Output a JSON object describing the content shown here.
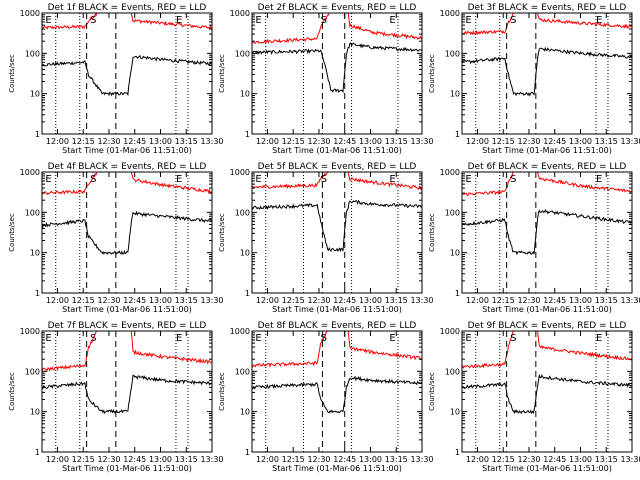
{
  "chart_data": [
    {
      "type": "line",
      "title": "Det 1f BLACK = Events, RED = LLD",
      "xlabel": "Start Time (01-Mar-06 11:51:00)",
      "ylabel": "Counts/sec",
      "yscale": "log",
      "ylim": [
        1,
        1000
      ],
      "xlim": [
        "11:51",
        "13:30"
      ],
      "yticks": [
        "1",
        "10",
        "100",
        "1000"
      ],
      "xticks": [
        "12:00",
        "12:15",
        "12:30",
        "12:45",
        "13:00",
        "13:15",
        "13:30"
      ],
      "markers": [
        "E",
        "S",
        "E"
      ],
      "series": [
        {
          "color": "#ff0000",
          "values": [
            [
              0,
              430
            ],
            [
              25,
              460
            ],
            [
              27,
              620
            ],
            [
              32,
              1000
            ],
            [
              52,
              1000
            ],
            [
              53,
              650
            ],
            [
              70,
              560
            ],
            [
              99,
              430
            ]
          ]
        },
        {
          "color": "#000000",
          "values": [
            [
              0,
              52
            ],
            [
              25,
              60
            ],
            [
              27,
              30
            ],
            [
              35,
              10
            ],
            [
              50,
              10
            ],
            [
              52,
              42
            ],
            [
              53,
              85
            ],
            [
              70,
              70
            ],
            [
              99,
              55
            ]
          ]
        }
      ]
    },
    {
      "type": "line",
      "title": "Det 2f BLACK = Events, RED = LLD",
      "xlabel": "Start Time (01-Mar-06 11:51:00)",
      "ylabel": "Counts/sec",
      "yscale": "log",
      "ylim": [
        1,
        1000
      ],
      "xlim": [
        "11:51",
        "13:30"
      ],
      "yticks": [
        "1",
        "10",
        "100",
        "1000"
      ],
      "xticks": [
        "12:00",
        "12:15",
        "12:30",
        "12:45",
        "13:00",
        "13:15",
        "13:30"
      ],
      "markers": [
        "E",
        "S",
        "E"
      ],
      "series": [
        {
          "color": "#ff0000",
          "values": [
            [
              0,
              190
            ],
            [
              38,
              230
            ],
            [
              40,
              450
            ],
            [
              45,
              1000
            ],
            [
              56,
              1000
            ],
            [
              57,
              500
            ],
            [
              70,
              330
            ],
            [
              99,
              240
            ]
          ]
        },
        {
          "color": "#000000",
          "values": [
            [
              0,
              105
            ],
            [
              40,
              115
            ],
            [
              42,
              60
            ],
            [
              46,
              12
            ],
            [
              53,
              12
            ],
            [
              55,
              100
            ],
            [
              57,
              170
            ],
            [
              70,
              140
            ],
            [
              99,
              120
            ]
          ]
        }
      ]
    },
    {
      "type": "line",
      "title": "Det 3f BLACK = Events, RED = LLD",
      "xlabel": "Start Time (01-Mar-06 11:51:00)",
      "ylabel": "Counts/sec",
      "yscale": "log",
      "ylim": [
        1,
        1000
      ],
      "xlim": [
        "11:51",
        "13:30"
      ],
      "yticks": [
        "1",
        "10",
        "100",
        "1000"
      ],
      "xticks": [
        "12:00",
        "12:15",
        "12:30",
        "12:45",
        "13:00",
        "13:15",
        "13:30"
      ],
      "markers": [
        "E",
        "S",
        "E"
      ],
      "series": [
        {
          "color": "#ff0000",
          "values": [
            [
              0,
              320
            ],
            [
              25,
              350
            ],
            [
              27,
              600
            ],
            [
              30,
              1000
            ],
            [
              44,
              1000
            ],
            [
              45,
              680
            ],
            [
              70,
              560
            ],
            [
              99,
              460
            ]
          ]
        },
        {
          "color": "#000000",
          "values": [
            [
              0,
              60
            ],
            [
              25,
              75
            ],
            [
              27,
              30
            ],
            [
              30,
              10
            ],
            [
              42,
              10
            ],
            [
              44,
              75
            ],
            [
              45,
              130
            ],
            [
              70,
              100
            ],
            [
              99,
              80
            ]
          ]
        }
      ]
    },
    {
      "type": "line",
      "title": "Det 4f BLACK = Events, RED = LLD",
      "xlabel": "Start Time (01-Mar-06 11:51:00)",
      "ylabel": "Counts/sec",
      "yscale": "log",
      "ylim": [
        1,
        1000
      ],
      "xlim": [
        "11:51",
        "13:30"
      ],
      "yticks": [
        "1",
        "10",
        "100",
        "1000"
      ],
      "xticks": [
        "12:00",
        "12:15",
        "12:30",
        "12:45",
        "13:00",
        "13:15",
        "13:30"
      ],
      "markers": [
        "E",
        "S",
        "E"
      ],
      "series": [
        {
          "color": "#ff0000",
          "values": [
            [
              0,
              300
            ],
            [
              25,
              330
            ],
            [
              27,
              520
            ],
            [
              32,
              1000
            ],
            [
              52,
              1000
            ],
            [
              53,
              650
            ],
            [
              70,
              480
            ],
            [
              99,
              330
            ]
          ]
        },
        {
          "color": "#000000",
          "values": [
            [
              0,
              48
            ],
            [
              25,
              62
            ],
            [
              27,
              25
            ],
            [
              35,
              10
            ],
            [
              50,
              10
            ],
            [
              52,
              60
            ],
            [
              53,
              95
            ],
            [
              70,
              80
            ],
            [
              99,
              60
            ]
          ]
        }
      ]
    },
    {
      "type": "line",
      "title": "Det 5f BLACK = Events, RED = LLD",
      "xlabel": "Start Time (01-Mar-06 11:51:00)",
      "ylabel": "Counts/sec",
      "yscale": "log",
      "ylim": [
        1,
        1000
      ],
      "xlim": [
        "11:51",
        "13:30"
      ],
      "yticks": [
        "1",
        "10",
        "100",
        "1000"
      ],
      "xticks": [
        "12:00",
        "12:15",
        "12:30",
        "12:45",
        "13:00",
        "13:15",
        "13:30"
      ],
      "markers": [
        "E",
        "S",
        "E"
      ],
      "series": [
        {
          "color": "#ff0000",
          "values": [
            [
              0,
              420
            ],
            [
              38,
              470
            ],
            [
              40,
              700
            ],
            [
              44,
              1000
            ],
            [
              56,
              1000
            ],
            [
              57,
              680
            ],
            [
              70,
              560
            ],
            [
              99,
              400
            ]
          ]
        },
        {
          "color": "#000000",
          "values": [
            [
              0,
              130
            ],
            [
              38,
              150
            ],
            [
              40,
              60
            ],
            [
              44,
              12
            ],
            [
              53,
              12
            ],
            [
              55,
              100
            ],
            [
              57,
              190
            ],
            [
              70,
              160
            ],
            [
              99,
              140
            ]
          ]
        }
      ]
    },
    {
      "type": "line",
      "title": "Det 6f BLACK = Events, RED = LLD",
      "xlabel": "Start Time (01-Mar-06 11:51:00)",
      "ylabel": "Counts/sec",
      "yscale": "log",
      "ylim": [
        1,
        1000
      ],
      "xlim": [
        "11:51",
        "13:30"
      ],
      "yticks": [
        "1",
        "10",
        "100",
        "1000"
      ],
      "xticks": [
        "12:00",
        "12:15",
        "12:30",
        "12:45",
        "13:00",
        "13:15",
        "13:30"
      ],
      "markers": [
        "E",
        "S",
        "E"
      ],
      "series": [
        {
          "color": "#ff0000",
          "values": [
            [
              0,
              280
            ],
            [
              25,
              320
            ],
            [
              27,
              560
            ],
            [
              30,
              1000
            ],
            [
              44,
              1000
            ],
            [
              45,
              700
            ],
            [
              70,
              450
            ],
            [
              99,
              330
            ]
          ]
        },
        {
          "color": "#000000",
          "values": [
            [
              0,
              50
            ],
            [
              25,
              65
            ],
            [
              27,
              25
            ],
            [
              30,
              10
            ],
            [
              42,
              10
            ],
            [
              44,
              70
            ],
            [
              45,
              110
            ],
            [
              70,
              80
            ],
            [
              99,
              55
            ]
          ]
        }
      ]
    },
    {
      "type": "line",
      "title": "Det 7f BLACK = Events, RED = LLD",
      "xlabel": "Start Time (01-Mar-06 11:51:00)",
      "ylabel": "Counts/sec",
      "yscale": "log",
      "ylim": [
        1,
        1000
      ],
      "xlim": [
        "11:51",
        "13:30"
      ],
      "yticks": [
        "1",
        "10",
        "100",
        "1000"
      ],
      "xticks": [
        "12:00",
        "12:15",
        "12:30",
        "12:45",
        "13:00",
        "13:15",
        "13:30"
      ],
      "markers": [
        "E",
        "S",
        "E"
      ],
      "series": [
        {
          "color": "#ff0000",
          "values": [
            [
              0,
              110
            ],
            [
              25,
              140
            ],
            [
              27,
              380
            ],
            [
              32,
              1000
            ],
            [
              52,
              1000
            ],
            [
              53,
              300
            ],
            [
              70,
              230
            ],
            [
              99,
              170
            ]
          ]
        },
        {
          "color": "#000000",
          "values": [
            [
              0,
              40
            ],
            [
              25,
              50
            ],
            [
              27,
              20
            ],
            [
              35,
              10
            ],
            [
              50,
              10
            ],
            [
              52,
              40
            ],
            [
              53,
              75
            ],
            [
              70,
              60
            ],
            [
              99,
              50
            ]
          ]
        }
      ]
    },
    {
      "type": "line",
      "title": "Det 8f BLACK = Events, RED = LLD",
      "xlabel": "Start Time (01-Mar-06 11:51:00)",
      "ylabel": "Counts/sec",
      "yscale": "log",
      "ylim": [
        1,
        1000
      ],
      "xlim": [
        "11:51",
        "13:30"
      ],
      "yticks": [
        "1",
        "10",
        "100",
        "1000"
      ],
      "xticks": [
        "12:00",
        "12:15",
        "12:30",
        "12:45",
        "13:00",
        "13:15",
        "13:30"
      ],
      "markers": [
        "E",
        "S",
        "E"
      ],
      "series": [
        {
          "color": "#ff0000",
          "values": [
            [
              0,
              140
            ],
            [
              38,
              160
            ],
            [
              40,
              500
            ],
            [
              44,
              1000
            ],
            [
              56,
              1000
            ],
            [
              57,
              380
            ],
            [
              70,
              300
            ],
            [
              99,
              210
            ]
          ]
        },
        {
          "color": "#000000",
          "values": [
            [
              0,
              40
            ],
            [
              38,
              48
            ],
            [
              40,
              20
            ],
            [
              44,
              10
            ],
            [
              53,
              10
            ],
            [
              55,
              40
            ],
            [
              57,
              70
            ],
            [
              70,
              60
            ],
            [
              99,
              50
            ]
          ]
        }
      ]
    },
    {
      "type": "line",
      "title": "Det 9f BLACK = Events, RED = LLD",
      "xlabel": "Start Time (01-Mar-06 11:51:00)",
      "ylabel": "Counts/sec",
      "yscale": "log",
      "ylim": [
        1,
        1000
      ],
      "xlim": [
        "11:51",
        "13:30"
      ],
      "yticks": [
        "1",
        "10",
        "100",
        "1000"
      ],
      "xticks": [
        "12:00",
        "12:15",
        "12:30",
        "12:45",
        "13:00",
        "13:15",
        "13:30"
      ],
      "markers": [
        "E",
        "S",
        "E"
      ],
      "series": [
        {
          "color": "#ff0000",
          "values": [
            [
              0,
              130
            ],
            [
              25,
              150
            ],
            [
              27,
              420
            ],
            [
              30,
              1000
            ],
            [
              44,
              1000
            ],
            [
              45,
              400
            ],
            [
              70,
              280
            ],
            [
              99,
              200
            ]
          ]
        },
        {
          "color": "#000000",
          "values": [
            [
              0,
              40
            ],
            [
              25,
              48
            ],
            [
              27,
              20
            ],
            [
              30,
              10
            ],
            [
              42,
              10
            ],
            [
              44,
              45
            ],
            [
              45,
              75
            ],
            [
              70,
              55
            ],
            [
              99,
              45
            ]
          ]
        }
      ]
    }
  ]
}
